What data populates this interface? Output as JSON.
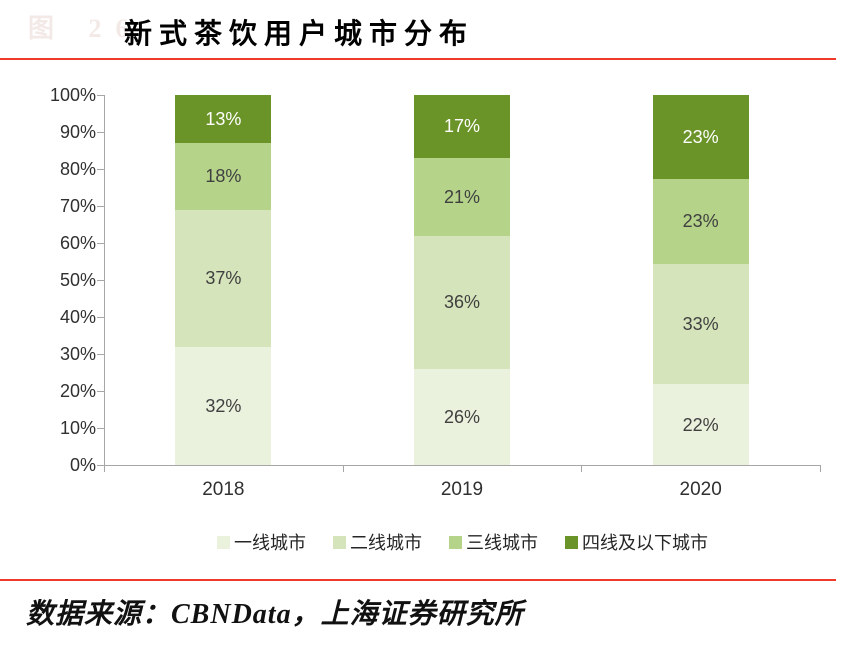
{
  "watermark": {
    "label": "图 26"
  },
  "header": {
    "title": "新式茶饮用户城市分布"
  },
  "footer": {
    "source": "数据来源：CBNData，上海证券研究所"
  },
  "colors": {
    "accent_red": "#EF392B",
    "axis_gray": "#A6A6A6",
    "watermark_pink": "#F3EAE8"
  },
  "chart_data": {
    "type": "bar",
    "stacked": true,
    "title": "新式茶饮用户城市分布",
    "xlabel": "",
    "ylabel": "",
    "categories": [
      "2018",
      "2019",
      "2020"
    ],
    "series": [
      {
        "name": "一线城市",
        "color": "#EAF1DD",
        "label_color": "#404040",
        "values": [
          32,
          26,
          22
        ]
      },
      {
        "name": "二线城市",
        "color": "#D5E4BA",
        "label_color": "#404040",
        "values": [
          37,
          36,
          33
        ]
      },
      {
        "name": "三线城市",
        "color": "#B5D48A",
        "label_color": "#404040",
        "values": [
          18,
          21,
          23
        ]
      },
      {
        "name": "四线及以下城市",
        "color": "#6A9428",
        "label_color": "#FFFFFF",
        "values": [
          13,
          17,
          23
        ]
      }
    ],
    "value_suffix": "%",
    "y_ticks": [
      "0%",
      "10%",
      "20%",
      "30%",
      "40%",
      "50%",
      "60%",
      "70%",
      "80%",
      "90%",
      "100%"
    ],
    "ylim": [
      0,
      100
    ],
    "grid": false,
    "legend_position": "bottom"
  }
}
